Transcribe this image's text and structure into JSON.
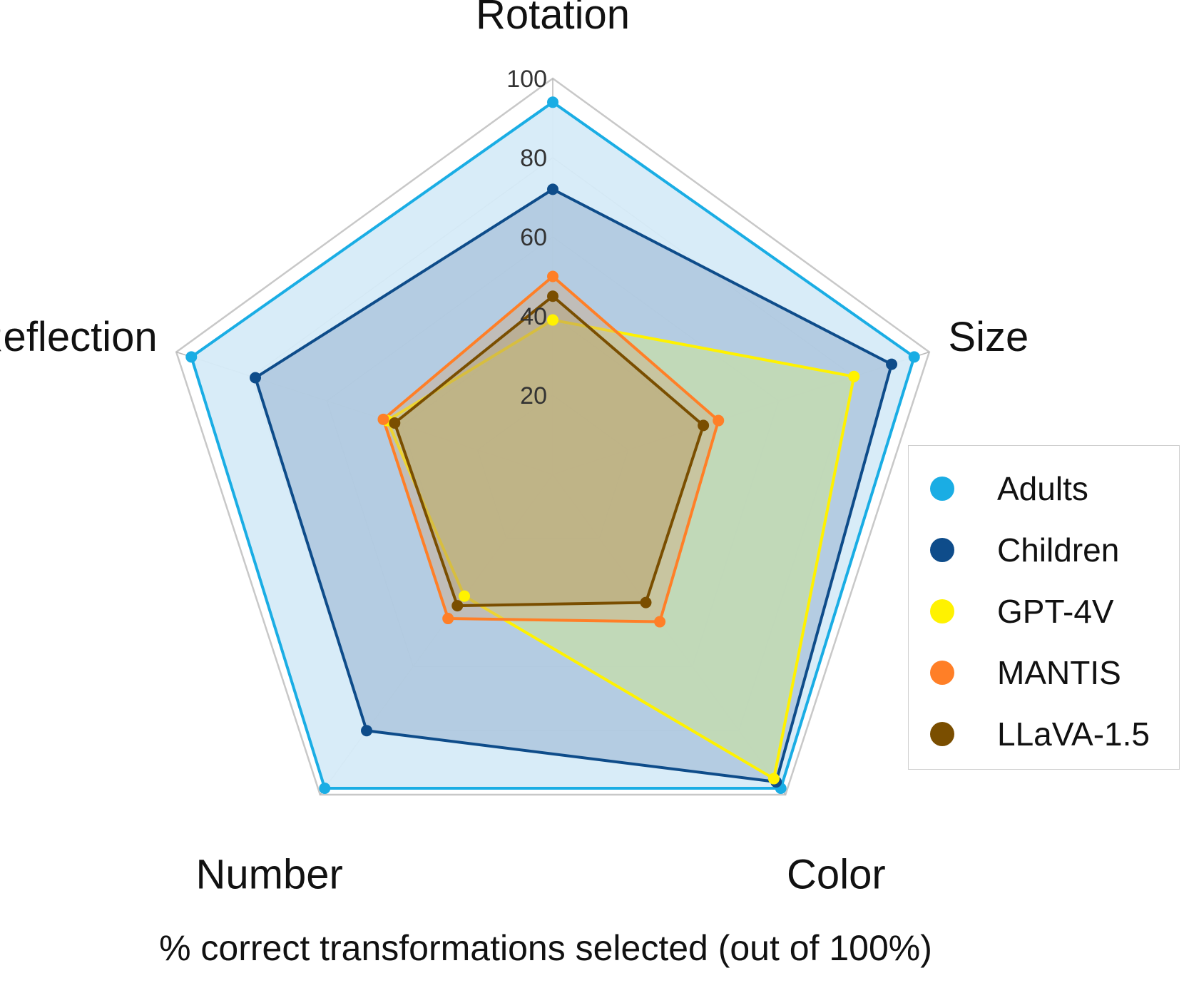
{
  "chart_data": {
    "type": "radar",
    "axes": [
      "Rotation",
      "Size",
      "Color",
      "Number",
      "Reflection"
    ],
    "rlim": [
      0,
      100
    ],
    "ticks": [
      20,
      40,
      60,
      80,
      100
    ],
    "grid": true,
    "legend_position": "right",
    "series": [
      {
        "name": "Adults",
        "color": "#1AADE4",
        "fill": "#D6EBF8",
        "fill_opacity": 0.95,
        "values": [
          94,
          96,
          98,
          98,
          96
        ]
      },
      {
        "name": "Children",
        "color": "#0E4C8A",
        "fill": "#8AA7C8",
        "fill_opacity": 0.45,
        "values": [
          72,
          90,
          96,
          80,
          79
        ]
      },
      {
        "name": "GPT-4V",
        "color": "#FFF200",
        "fill": "#C9E19C",
        "fill_opacity": 0.6,
        "values": [
          39,
          80,
          95,
          38,
          44
        ]
      },
      {
        "name": "MANTIS",
        "color": "#FF7F27",
        "fill": "#D2A77C",
        "fill_opacity": 0.4,
        "values": [
          50,
          44,
          46,
          45,
          45
        ]
      },
      {
        "name": "LLaVA-1.5",
        "color": "#7A4E00",
        "fill": "#B09558",
        "fill_opacity": 0.35,
        "values": [
          45,
          40,
          40,
          41,
          42
        ]
      }
    ],
    "xlabel": "% correct transformations selected (out of 100%)"
  }
}
